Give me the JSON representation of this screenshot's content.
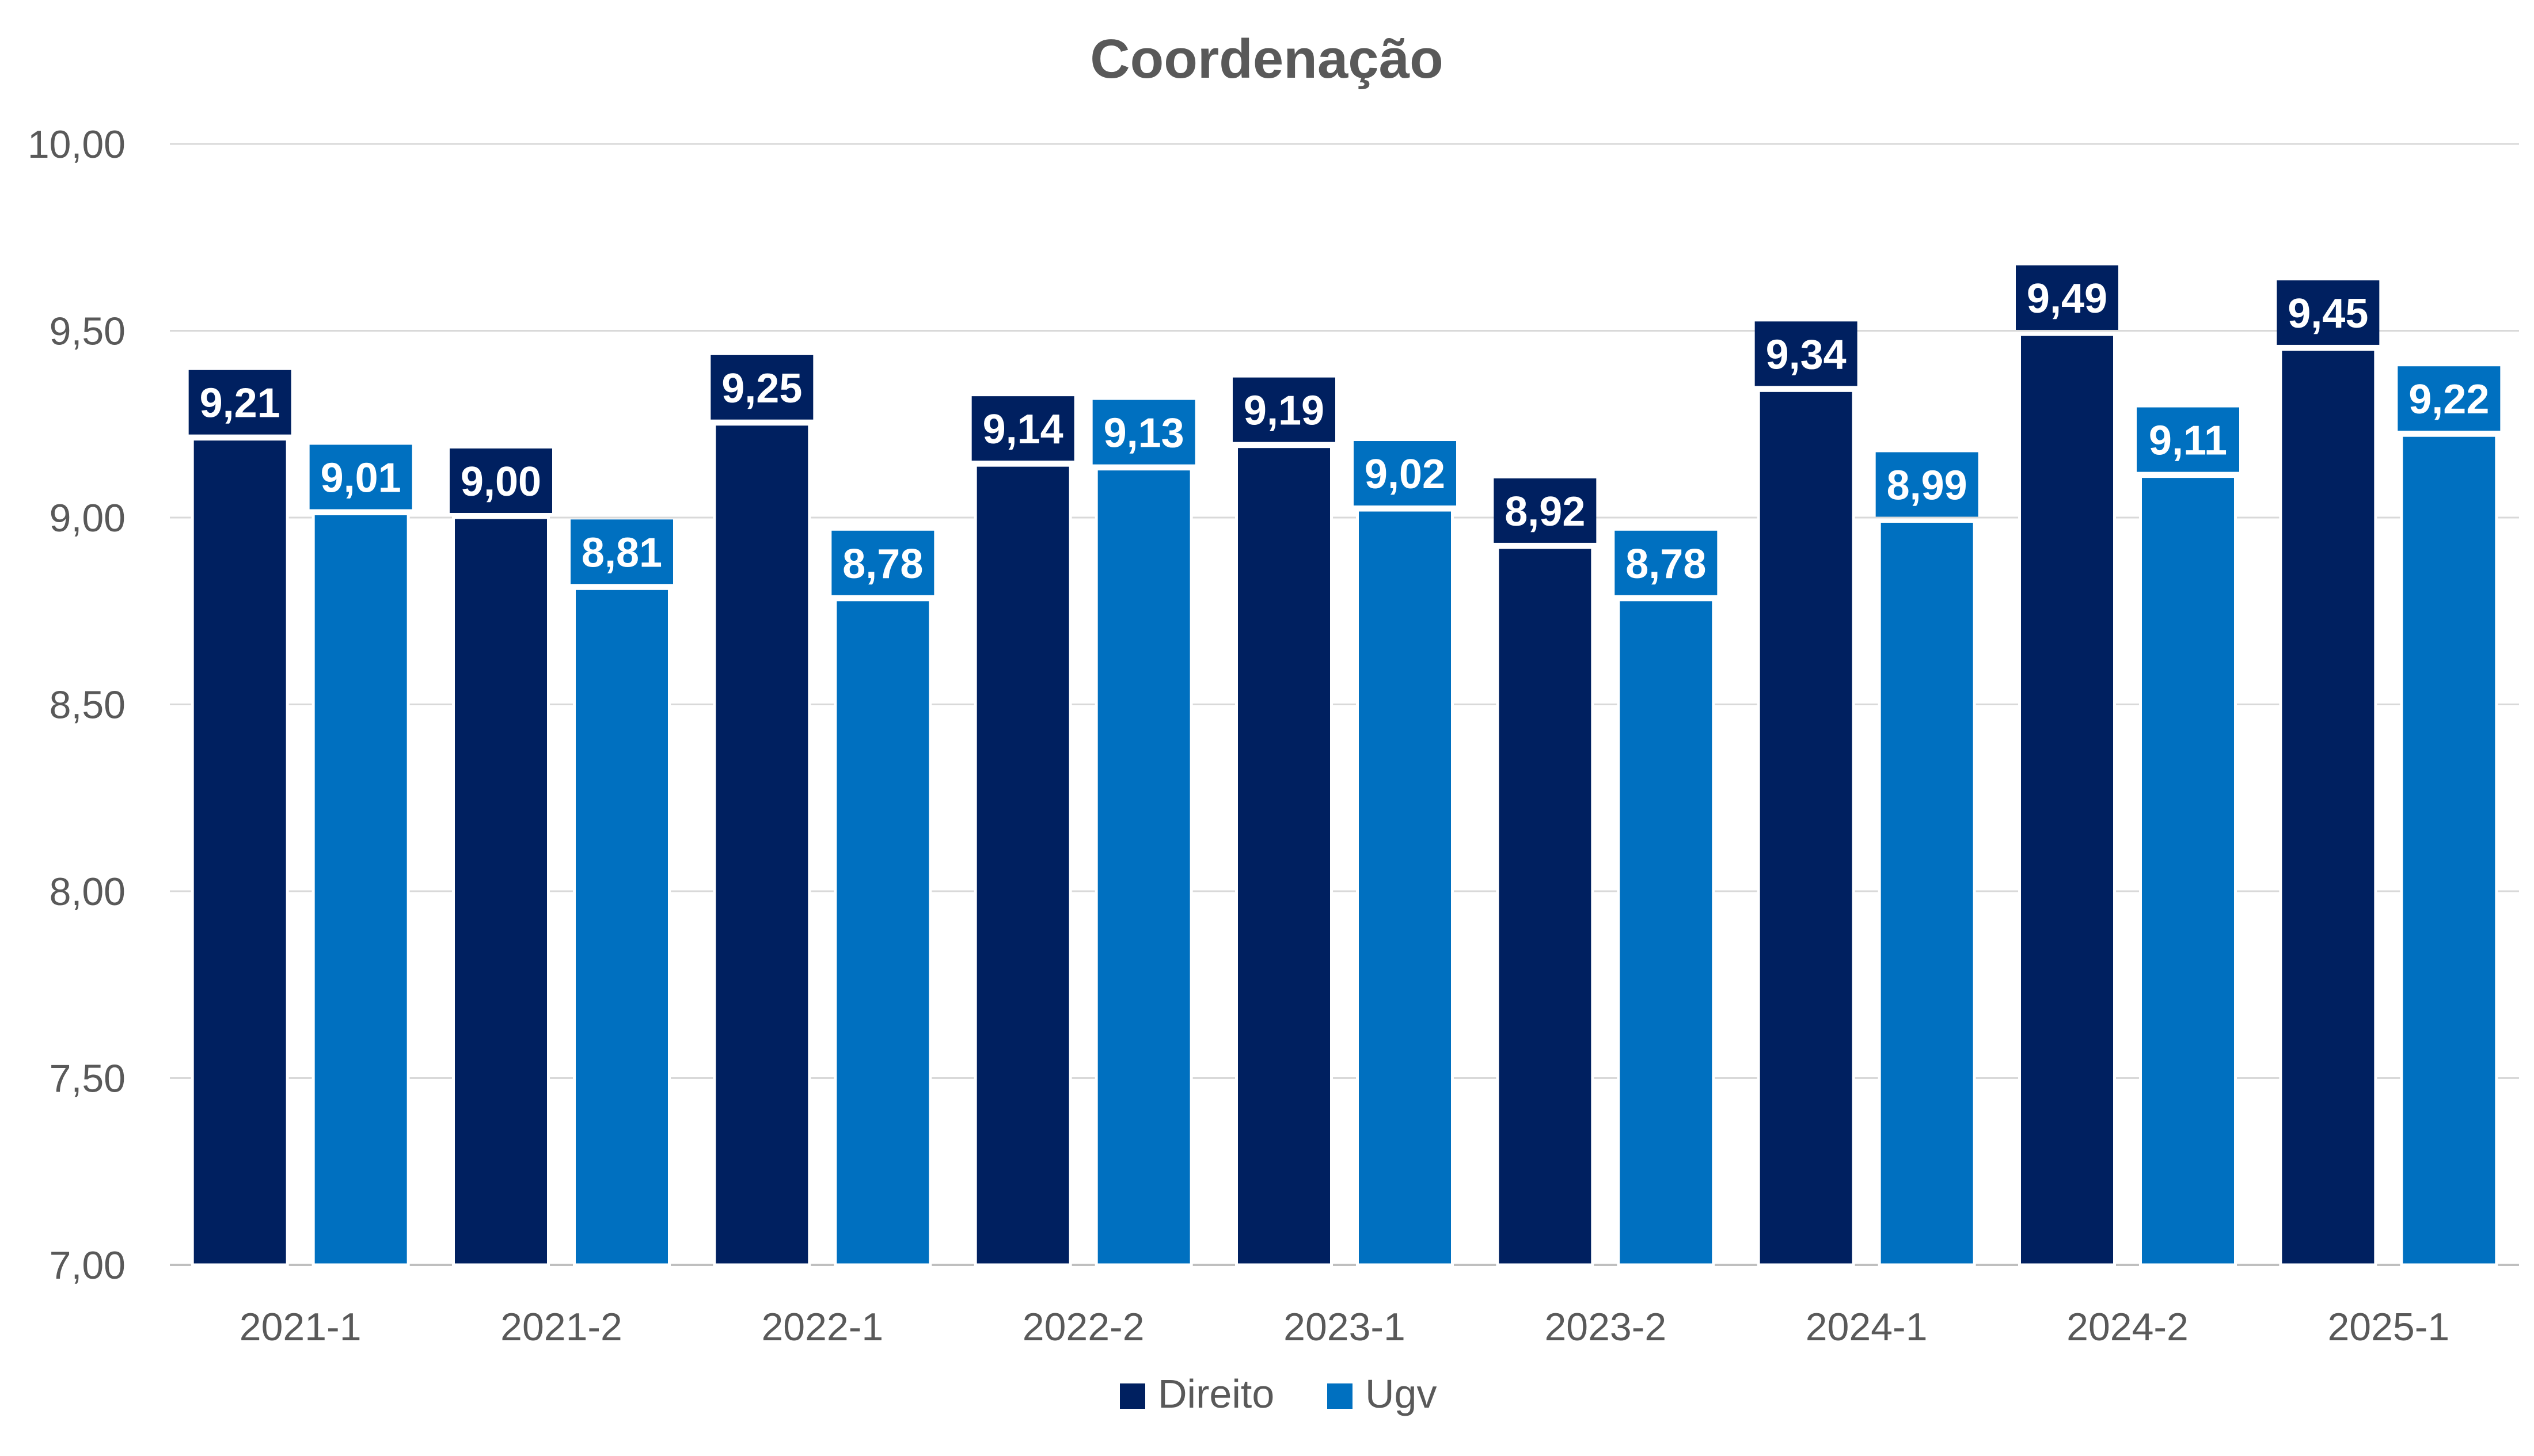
{
  "chart_data": {
    "type": "bar",
    "title": "Coordenação",
    "xlabel": "",
    "ylabel": "",
    "ylim": [
      7.0,
      10.0
    ],
    "yticks": [
      "7,00",
      "7,50",
      "8,00",
      "8,50",
      "9,00",
      "9,50",
      "10,00"
    ],
    "ytick_values": [
      7.0,
      7.5,
      8.0,
      8.5,
      9.0,
      9.5,
      10.0
    ],
    "grid": true,
    "legend_position": "bottom",
    "categories": [
      "2021-1",
      "2021-2",
      "2022-1",
      "2022-2",
      "2023-1",
      "2023-2",
      "2024-1",
      "2024-2",
      "2025-1"
    ],
    "series": [
      {
        "name": "Direito",
        "color": "#002060",
        "values": [
          9.21,
          9.0,
          9.25,
          9.14,
          9.19,
          8.92,
          9.34,
          9.49,
          9.45
        ],
        "labels": [
          "9,21",
          "9,00",
          "9,25",
          "9,14",
          "9,19",
          "8,92",
          "9,34",
          "9,49",
          "9,45"
        ]
      },
      {
        "name": "Ugv",
        "color": "#0070C0",
        "values": [
          9.01,
          8.81,
          8.78,
          9.13,
          9.02,
          8.78,
          8.99,
          9.11,
          9.22
        ],
        "labels": [
          "9,01",
          "8,81",
          "8,78",
          "9,13",
          "9,02",
          "8,78",
          "8,99",
          "9,11",
          "9,22"
        ]
      }
    ]
  }
}
